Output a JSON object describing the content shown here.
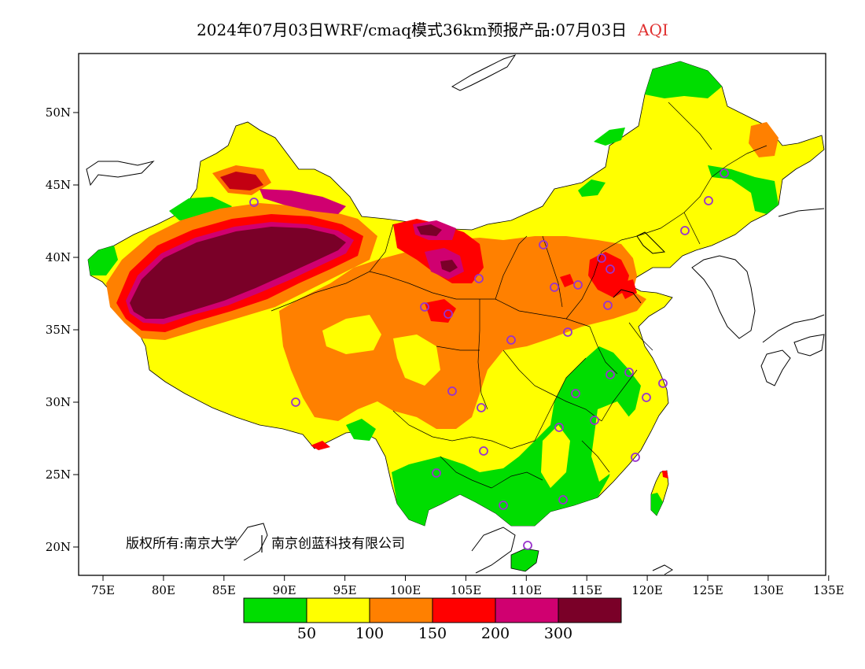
{
  "title": {
    "main": "2024年07月03日WRF/cmaq模式36km预报产品:07月03日",
    "variable": "AQI",
    "variable_color": "#e03030"
  },
  "copyright": {
    "part1": "版权所有:南京大学",
    "part2": "南京创蓝科技有限公司"
  },
  "axes": {
    "lon_labels": [
      "75E",
      "80E",
      "85E",
      "90E",
      "95E",
      "100E",
      "105E",
      "110E",
      "115E",
      "120E",
      "125E",
      "130E",
      "135E"
    ],
    "lat_labels": [
      "50N",
      "45N",
      "40N",
      "35N",
      "30N",
      "25N",
      "20N"
    ]
  },
  "legend": {
    "colors": [
      "#00dd00",
      "#ffff00",
      "#ff8000",
      "#ff0000",
      "#d00070",
      "#7a0028"
    ],
    "ticks": [
      "50",
      "100",
      "150",
      "200",
      "300"
    ]
  },
  "colors": {
    "green": "#00dd00",
    "yellow": "#ffff00",
    "orange": "#ff8000",
    "red": "#ff0000",
    "magenta": "#d00070",
    "maroon": "#7a0028",
    "station": "#9933cc"
  }
}
